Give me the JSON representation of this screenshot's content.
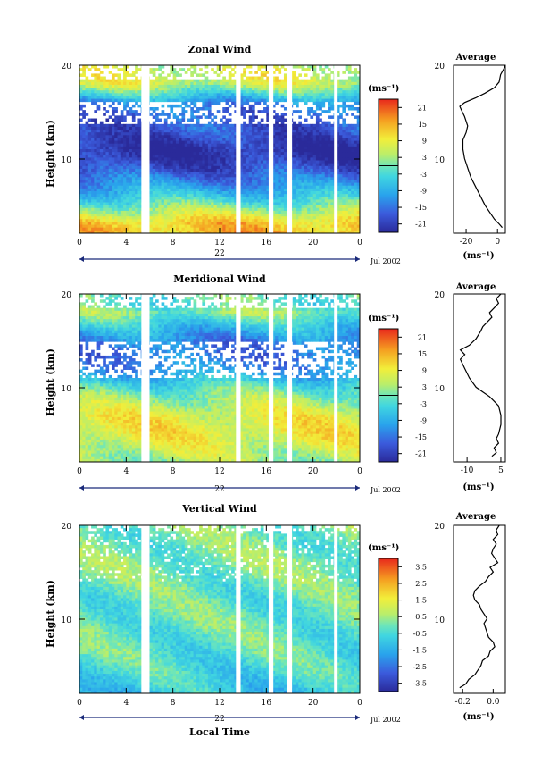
{
  "common": {
    "month_label": "Jul 2002",
    "day_label": "22",
    "time_ticks": [
      "0",
      "4",
      "8",
      "12",
      "16",
      "20",
      "0"
    ],
    "height_ticks": [
      "10",
      "20"
    ],
    "ylabel": "Height (km)",
    "xlabel": "Local Time",
    "cbar_unit": "(ms⁻¹)",
    "avg_unit": "(ms⁻¹)"
  },
  "chart_data": [
    {
      "type": "heatmap",
      "title": "Zonal Wind",
      "x_range": [
        0,
        24
      ],
      "y_range": [
        2,
        20
      ],
      "xlabel": "Local Time",
      "ylabel": "Height (km)",
      "colorbar": {
        "ticks": [
          "21",
          "15",
          "9",
          "3",
          "-3",
          "-9",
          "-15",
          "-21"
        ],
        "range": [
          -24,
          24
        ]
      },
      "profile_by_height": [
        {
          "h": 2,
          "v": 14
        },
        {
          "h": 3,
          "v": 13
        },
        {
          "h": 4,
          "v": 7
        },
        {
          "h": 5,
          "v": 0
        },
        {
          "h": 6,
          "v": -6
        },
        {
          "h": 7,
          "v": -11
        },
        {
          "h": 8,
          "v": -15
        },
        {
          "h": 9,
          "v": -19
        },
        {
          "h": 10,
          "v": -22
        },
        {
          "h": 11,
          "v": -23
        },
        {
          "h": 12,
          "v": -21
        },
        {
          "h": 13,
          "v": -18
        },
        {
          "h": 14,
          "v": -18
        },
        {
          "h": 15,
          "v": -16
        },
        {
          "h": 16,
          "v": -12
        },
        {
          "h": 17,
          "v": -3
        },
        {
          "h": 18,
          "v": 6
        },
        {
          "h": 19,
          "v": 7
        },
        {
          "h": 20,
          "v": 6
        }
      ],
      "missing_time_columns": [
        [
          5.3,
          6.0
        ],
        [
          13.4,
          13.8
        ],
        [
          16.2,
          16.6
        ],
        [
          17.8,
          18.2
        ],
        [
          21.8,
          22.1
        ]
      ],
      "average_profile": {
        "title": "Average",
        "x_ticks": [
          "-20",
          "0"
        ],
        "x_range": [
          -28,
          5
        ],
        "points": [
          {
            "h": 2.6,
            "v": 3
          },
          {
            "h": 3,
            "v": 1
          },
          {
            "h": 3.5,
            "v": -2
          },
          {
            "h": 4,
            "v": -4
          },
          {
            "h": 4.5,
            "v": -6
          },
          {
            "h": 5,
            "v": -8
          },
          {
            "h": 6,
            "v": -11
          },
          {
            "h": 7,
            "v": -14
          },
          {
            "h": 8,
            "v": -17
          },
          {
            "h": 9,
            "v": -19
          },
          {
            "h": 10,
            "v": -21
          },
          {
            "h": 11,
            "v": -22
          },
          {
            "h": 12,
            "v": -22
          },
          {
            "h": 12.8,
            "v": -20
          },
          {
            "h": 13.5,
            "v": -19
          },
          {
            "h": 14.5,
            "v": -21
          },
          {
            "h": 15.2,
            "v": -23
          },
          {
            "h": 15.6,
            "v": -24
          },
          {
            "h": 16,
            "v": -21
          },
          {
            "h": 16.5,
            "v": -14
          },
          {
            "h": 17,
            "v": -8
          },
          {
            "h": 17.6,
            "v": -2
          },
          {
            "h": 18.2,
            "v": 1
          },
          {
            "h": 19,
            "v": 2
          },
          {
            "h": 19.6,
            "v": 4
          },
          {
            "h": 20,
            "v": 5
          }
        ]
      }
    },
    {
      "type": "heatmap",
      "title": "Meridional Wind",
      "x_range": [
        0,
        24
      ],
      "y_range": [
        2,
        20
      ],
      "xlabel": "Local Time",
      "ylabel": "Height (km)",
      "colorbar": {
        "ticks": [
          "21",
          "15",
          "9",
          "3",
          "-3",
          "-9",
          "-15",
          "-21"
        ],
        "range": [
          -24,
          24
        ]
      },
      "profile_by_height": [
        {
          "h": 2,
          "v": 3
        },
        {
          "h": 3,
          "v": 5
        },
        {
          "h": 4,
          "v": 7
        },
        {
          "h": 5,
          "v": 9
        },
        {
          "h": 6,
          "v": 9
        },
        {
          "h": 7,
          "v": 8
        },
        {
          "h": 8,
          "v": 5
        },
        {
          "h": 9,
          "v": 2
        },
        {
          "h": 10,
          "v": -2
        },
        {
          "h": 11,
          "v": -7
        },
        {
          "h": 12,
          "v": -12
        },
        {
          "h": 13,
          "v": -14
        },
        {
          "h": 14,
          "v": -15
        },
        {
          "h": 15,
          "v": -13
        },
        {
          "h": 16,
          "v": -9
        },
        {
          "h": 17,
          "v": -4
        },
        {
          "h": 18,
          "v": 2
        },
        {
          "h": 19,
          "v": -2
        },
        {
          "h": 20,
          "v": 0
        }
      ],
      "missing_time_columns": [
        [
          5.3,
          6.0
        ],
        [
          13.4,
          13.8
        ],
        [
          16.2,
          16.6
        ],
        [
          17.8,
          18.2
        ],
        [
          21.8,
          22.1
        ]
      ],
      "average_profile": {
        "title": "Average",
        "x_ticks": [
          "-10",
          "5"
        ],
        "x_range": [
          -16,
          7
        ],
        "points": [
          {
            "h": 2.6,
            "v": 1
          },
          {
            "h": 3,
            "v": 3
          },
          {
            "h": 3.5,
            "v": 2
          },
          {
            "h": 4,
            "v": 4
          },
          {
            "h": 4.5,
            "v": 3
          },
          {
            "h": 5,
            "v": 4
          },
          {
            "h": 6,
            "v": 5
          },
          {
            "h": 7,
            "v": 5
          },
          {
            "h": 8,
            "v": 4
          },
          {
            "h": 8.5,
            "v": 2
          },
          {
            "h": 9,
            "v": 0
          },
          {
            "h": 9.5,
            "v": -3
          },
          {
            "h": 10,
            "v": -6
          },
          {
            "h": 11,
            "v": -9
          },
          {
            "h": 12,
            "v": -11
          },
          {
            "h": 13,
            "v": -13
          },
          {
            "h": 13.5,
            "v": -11
          },
          {
            "h": 14,
            "v": -13
          },
          {
            "h": 14.5,
            "v": -9
          },
          {
            "h": 15.2,
            "v": -6
          },
          {
            "h": 16,
            "v": -4
          },
          {
            "h": 16.5,
            "v": -3
          },
          {
            "h": 17,
            "v": -1
          },
          {
            "h": 17.5,
            "v": 1
          },
          {
            "h": 18,
            "v": 0
          },
          {
            "h": 18.5,
            "v": 2
          },
          {
            "h": 19,
            "v": 4
          },
          {
            "h": 19.5,
            "v": 3
          },
          {
            "h": 20,
            "v": 5
          }
        ]
      }
    },
    {
      "type": "heatmap",
      "title": "Vertical Wind",
      "x_range": [
        0,
        24
      ],
      "y_range": [
        2,
        20
      ],
      "xlabel": "Local Time",
      "ylabel": "Height (km)",
      "colorbar": {
        "ticks": [
          "3.5",
          "2.5",
          "1.5",
          "0.5",
          "-0.5",
          "-1.5",
          "-2.5",
          "-3.5"
        ],
        "range": [
          -4,
          4
        ]
      },
      "profile_by_height": [
        {
          "h": 2,
          "v": -1.0
        },
        {
          "h": 4,
          "v": -0.6
        },
        {
          "h": 6,
          "v": -0.3
        },
        {
          "h": 8,
          "v": -0.2
        },
        {
          "h": 10,
          "v": -0.1
        },
        {
          "h": 12,
          "v": -0.2
        },
        {
          "h": 14,
          "v": 0.0
        },
        {
          "h": 16,
          "v": 0.2
        },
        {
          "h": 18,
          "v": 0.0
        },
        {
          "h": 20,
          "v": 0.1
        }
      ],
      "missing_time_columns": [
        [
          5.3,
          6.0
        ],
        [
          13.4,
          13.8
        ],
        [
          16.2,
          16.6
        ],
        [
          17.8,
          18.2
        ],
        [
          21.8,
          22.1
        ]
      ],
      "average_profile": {
        "title": "Average",
        "x_ticks": [
          "-0.2",
          "0.0"
        ],
        "x_range": [
          -0.26,
          0.08
        ],
        "points": [
          {
            "h": 2.6,
            "v": -0.22
          },
          {
            "h": 3,
            "v": -0.18
          },
          {
            "h": 3.5,
            "v": -0.16
          },
          {
            "h": 4,
            "v": -0.12
          },
          {
            "h": 4.5,
            "v": -0.1
          },
          {
            "h": 5,
            "v": -0.08
          },
          {
            "h": 5.5,
            "v": -0.07
          },
          {
            "h": 6,
            "v": -0.03
          },
          {
            "h": 6.5,
            "v": -0.02
          },
          {
            "h": 7,
            "v": 0.01
          },
          {
            "h": 7.5,
            "v": 0.0
          },
          {
            "h": 8,
            "v": -0.03
          },
          {
            "h": 8.5,
            "v": -0.04
          },
          {
            "h": 9,
            "v": -0.05
          },
          {
            "h": 9.5,
            "v": -0.06
          },
          {
            "h": 10,
            "v": -0.04
          },
          {
            "h": 10.5,
            "v": -0.06
          },
          {
            "h": 11,
            "v": -0.08
          },
          {
            "h": 11.5,
            "v": -0.09
          },
          {
            "h": 12,
            "v": -0.12
          },
          {
            "h": 12.5,
            "v": -0.13
          },
          {
            "h": 13,
            "v": -0.12
          },
          {
            "h": 13.5,
            "v": -0.09
          },
          {
            "h": 14,
            "v": -0.05
          },
          {
            "h": 14.5,
            "v": -0.03
          },
          {
            "h": 15,
            "v": 0.0
          },
          {
            "h": 15.5,
            "v": -0.02
          },
          {
            "h": 16,
            "v": 0.03
          },
          {
            "h": 16.5,
            "v": 0.01
          },
          {
            "h": 17,
            "v": -0.01
          },
          {
            "h": 17.5,
            "v": 0.0
          },
          {
            "h": 18,
            "v": 0.02
          },
          {
            "h": 18.5,
            "v": 0.0
          },
          {
            "h": 19,
            "v": 0.03
          },
          {
            "h": 19.5,
            "v": 0.02
          },
          {
            "h": 20,
            "v": 0.04
          }
        ]
      }
    }
  ]
}
